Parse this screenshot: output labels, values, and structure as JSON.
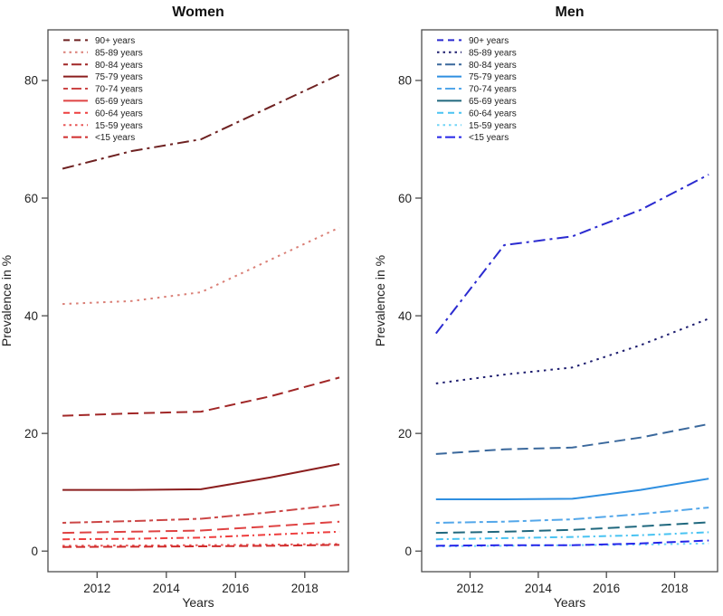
{
  "figure": {
    "background": "#ffffff",
    "axis_style": {
      "border_color": "#4d4d4d",
      "tick_color": "#4d4d4d",
      "tick_label_color": "#222222",
      "title_color": "#111111",
      "axis_label_color": "#222222"
    }
  },
  "chart_data": [
    {
      "type": "line",
      "title": "Women",
      "xlabel": "Years",
      "ylabel": "Prevalence in %",
      "x": [
        2011,
        2013,
        2015,
        2017,
        2019
      ],
      "xticks": [
        2012,
        2014,
        2016,
        2018
      ],
      "yticks": [
        0,
        20,
        40,
        60,
        80
      ],
      "xlim": [
        2010.58,
        2019.26
      ],
      "ylim": [
        -3.5,
        88.6
      ],
      "grid": false,
      "legend_position": "top-left",
      "series": [
        {
          "name": "90+ years",
          "color": "#6e2121",
          "dash": "13,5,3,5",
          "legend_dash": "7,5",
          "values": [
            65,
            68,
            70,
            75.5,
            81
          ]
        },
        {
          "name": "85-89 years",
          "color": "#da7f76",
          "dash": "2.5,5",
          "legend_dash": "2.5,4",
          "values": [
            42,
            42.5,
            44,
            49.5,
            55
          ]
        },
        {
          "name": "80-84 years",
          "color": "#a12727",
          "dash": "12,6",
          "legend_dash": "5,4,11,4",
          "values": [
            23,
            23.4,
            23.7,
            26.3,
            29.5
          ]
        },
        {
          "name": "75-79 years",
          "color": "#8b1e1e",
          "dash": "",
          "legend_dash": "",
          "values": [
            10.4,
            10.4,
            10.5,
            12.5,
            14.8
          ]
        },
        {
          "name": "70-74 years",
          "color": "#cc4646",
          "dash": "4,4,12,4",
          "legend_dash": "5,4,11,4",
          "values": [
            4.8,
            5.1,
            5.5,
            6.6,
            7.9
          ]
        },
        {
          "name": "65-69 years",
          "color": "#df4343",
          "dash": "13,6",
          "legend_dash": "",
          "values": [
            3.1,
            3.3,
            3.5,
            4.2,
            5.0
          ]
        },
        {
          "name": "60-64 years",
          "color": "#ee3e3e",
          "dash": "8,4,2,4",
          "legend_dash": "7,5",
          "values": [
            2.0,
            2.1,
            2.3,
            2.8,
            3.3
          ]
        },
        {
          "name": "15-59 years",
          "color": "#e75555",
          "dash": "2.5,4.5",
          "legend_dash": "2.5,4",
          "values": [
            0.9,
            0.95,
            1.0,
            1.1,
            1.2
          ]
        },
        {
          "name": "<15 years",
          "color": "#d02c2c",
          "dash": "10,5",
          "legend_dash": "5,4,11,4",
          "values": [
            0.7,
            0.75,
            0.8,
            0.9,
            1.05
          ]
        }
      ]
    },
    {
      "type": "line",
      "title": "Men",
      "xlabel": "Years",
      "ylabel": "Prevalence in %",
      "x": [
        2011,
        2013,
        2015,
        2017,
        2019
      ],
      "xticks": [
        2012,
        2014,
        2016,
        2018
      ],
      "yticks": [
        0,
        20,
        40,
        60,
        80
      ],
      "xlim": [
        2010.58,
        2019.26
      ],
      "ylim": [
        -3.5,
        88.6
      ],
      "grid": false,
      "legend_position": "top-left",
      "series": [
        {
          "name": "90+ years",
          "color": "#2b2bd0",
          "dash": "13,5,3,5",
          "legend_dash": "7,5",
          "values": [
            37,
            52,
            53.5,
            58,
            64
          ]
        },
        {
          "name": "85-89 years",
          "color": "#1c1c6e",
          "dash": "2.5,5",
          "legend_dash": "2.5,4",
          "values": [
            28.5,
            30,
            31.2,
            35,
            39.5
          ]
        },
        {
          "name": "80-84 years",
          "color": "#3a689c",
          "dash": "12,6",
          "legend_dash": "5,4,11,4",
          "values": [
            16.5,
            17.3,
            17.6,
            19.3,
            21.6
          ]
        },
        {
          "name": "75-79 years",
          "color": "#2f8fe0",
          "dash": "",
          "legend_dash": "",
          "values": [
            8.8,
            8.8,
            8.9,
            10.4,
            12.3
          ]
        },
        {
          "name": "70-74 years",
          "color": "#53a7ea",
          "dash": "4,4,12,4",
          "legend_dash": "5,4,11,4",
          "values": [
            4.8,
            5.0,
            5.4,
            6.3,
            7.4
          ]
        },
        {
          "name": "65-69 years",
          "color": "#20687e",
          "dash": "13,6",
          "legend_dash": "",
          "values": [
            3.1,
            3.3,
            3.6,
            4.2,
            4.9
          ]
        },
        {
          "name": "60-64 years",
          "color": "#49c3f2",
          "dash": "8,4,2,4",
          "legend_dash": "7,5",
          "values": [
            2.0,
            2.2,
            2.4,
            2.7,
            3.2
          ]
        },
        {
          "name": "15-59 years",
          "color": "#6fd4f7",
          "dash": "2.5,4.5",
          "legend_dash": "2.5,4",
          "values": [
            0.8,
            0.9,
            1.0,
            1.1,
            1.3
          ]
        },
        {
          "name": "<15 years",
          "color": "#2424e8",
          "dash": "10,5",
          "legend_dash": "5,4,11,4",
          "values": [
            0.9,
            1.0,
            1.0,
            1.3,
            1.8
          ]
        }
      ]
    }
  ]
}
